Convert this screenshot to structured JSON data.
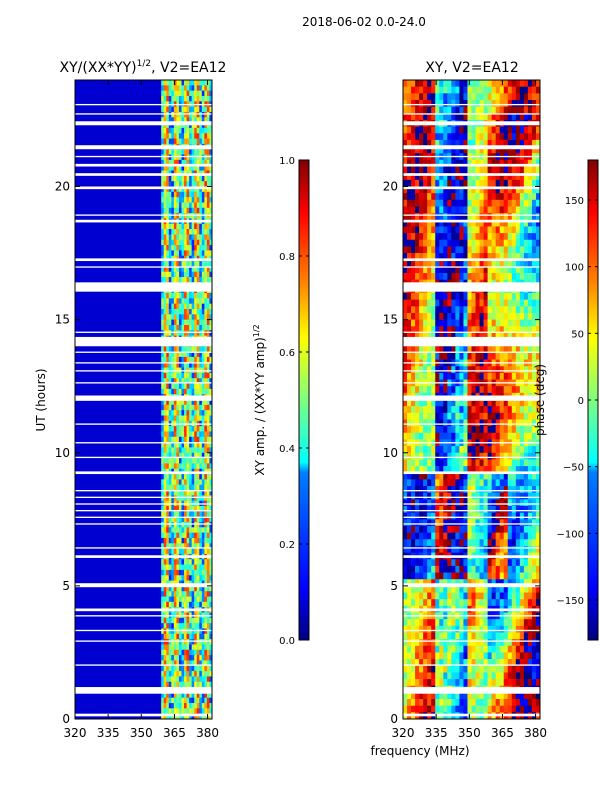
{
  "suptitle": "2018-06-02 0.0-24.0",
  "xlabel": "frequency (MHz)",
  "colors": {
    "jet": [
      "#00007f",
      "#0000ff",
      "#007fff",
      "#00ffff",
      "#7fff7f",
      "#ffff00",
      "#ff7f00",
      "#ff0000",
      "#7f0000"
    ],
    "frame": "#000000",
    "gap": "#ffffff"
  },
  "chart_data": [
    {
      "type": "heatmap",
      "title_main": "XY/(XX*YY)",
      "title_sup": "1/2",
      "title_tail": ", V2=EA12",
      "xlabel": "",
      "ylabel": "UT (hours)",
      "xlim": [
        320,
        382
      ],
      "ylim": [
        0,
        24
      ],
      "xticks": [
        320,
        335,
        350,
        365,
        380
      ],
      "yticks": [
        0,
        5,
        10,
        15,
        20
      ],
      "x_tick_labels": [
        "320",
        "335",
        "350",
        "365",
        "380"
      ],
      "y_tick_labels": [
        "0",
        "5",
        "10",
        "15",
        "20"
      ],
      "colorbar": {
        "label_main": "XY amp. / (XX*YY amp)",
        "label_sup": "1/2",
        "range": [
          0.0,
          1.0
        ],
        "ticks": [
          0.0,
          0.2,
          0.4,
          0.6,
          0.8,
          1.0
        ],
        "tick_labels": [
          "0.0",
          "0.2",
          "0.4",
          "0.6",
          "0.8",
          "1.0"
        ]
      },
      "rfi_band_MHz": [
        359,
        382
      ],
      "background_value": 0.08
    },
    {
      "type": "heatmap",
      "title_main": "XY, V2=EA12",
      "title_sup": "",
      "title_tail": "",
      "xlabel": "frequency (MHz)",
      "ylabel": "",
      "xlim": [
        320,
        382
      ],
      "ylim": [
        0,
        24
      ],
      "xticks": [
        320,
        335,
        350,
        365,
        380
      ],
      "yticks": [
        0,
        5,
        10,
        15,
        20
      ],
      "x_tick_labels": [
        "320",
        "335",
        "350",
        "365",
        "380"
      ],
      "y_tick_labels": [
        "0",
        "5",
        "10",
        "15",
        "20"
      ],
      "colorbar": {
        "label_main": "phase (deg)",
        "label_sup": "",
        "range": [
          -180,
          180
        ],
        "ticks": [
          -150,
          -100,
          -50,
          0,
          50,
          100,
          150
        ],
        "tick_labels": [
          "−150",
          "−100",
          "−50",
          "0",
          "50",
          "100",
          "150"
        ]
      }
    }
  ],
  "flagged_time_ranges_hours": [
    [
      0.1,
      0.2
    ],
    [
      0.95,
      1.2
    ],
    [
      2.0,
      2.05
    ],
    [
      2.9,
      2.95
    ],
    [
      3.3,
      3.35
    ],
    [
      3.85,
      3.9
    ],
    [
      4.05,
      4.15
    ],
    [
      4.95,
      5.1
    ],
    [
      6.05,
      6.15
    ],
    [
      6.4,
      6.45
    ],
    [
      7.3,
      7.35
    ],
    [
      7.55,
      7.6
    ],
    [
      7.8,
      7.85
    ],
    [
      8.05,
      8.1
    ],
    [
      8.3,
      8.35
    ],
    [
      8.55,
      8.6
    ],
    [
      9.2,
      9.3
    ],
    [
      9.8,
      9.85
    ],
    [
      10.35,
      10.4
    ],
    [
      11.05,
      11.1
    ],
    [
      11.95,
      12.15
    ],
    [
      12.6,
      12.65
    ],
    [
      13.05,
      13.1
    ],
    [
      13.35,
      13.4
    ],
    [
      13.75,
      13.8
    ],
    [
      14.0,
      14.35
    ],
    [
      14.5,
      14.55
    ],
    [
      16.05,
      16.4
    ],
    [
      16.95,
      17.0
    ],
    [
      17.2,
      17.3
    ],
    [
      18.65,
      18.75
    ],
    [
      18.9,
      18.95
    ],
    [
      19.9,
      20.0
    ],
    [
      20.4,
      20.5
    ],
    [
      20.75,
      20.85
    ],
    [
      21.1,
      21.15
    ],
    [
      21.4,
      21.55
    ],
    [
      22.3,
      22.45
    ],
    [
      22.7,
      22.75
    ],
    [
      23.05,
      23.1
    ]
  ]
}
